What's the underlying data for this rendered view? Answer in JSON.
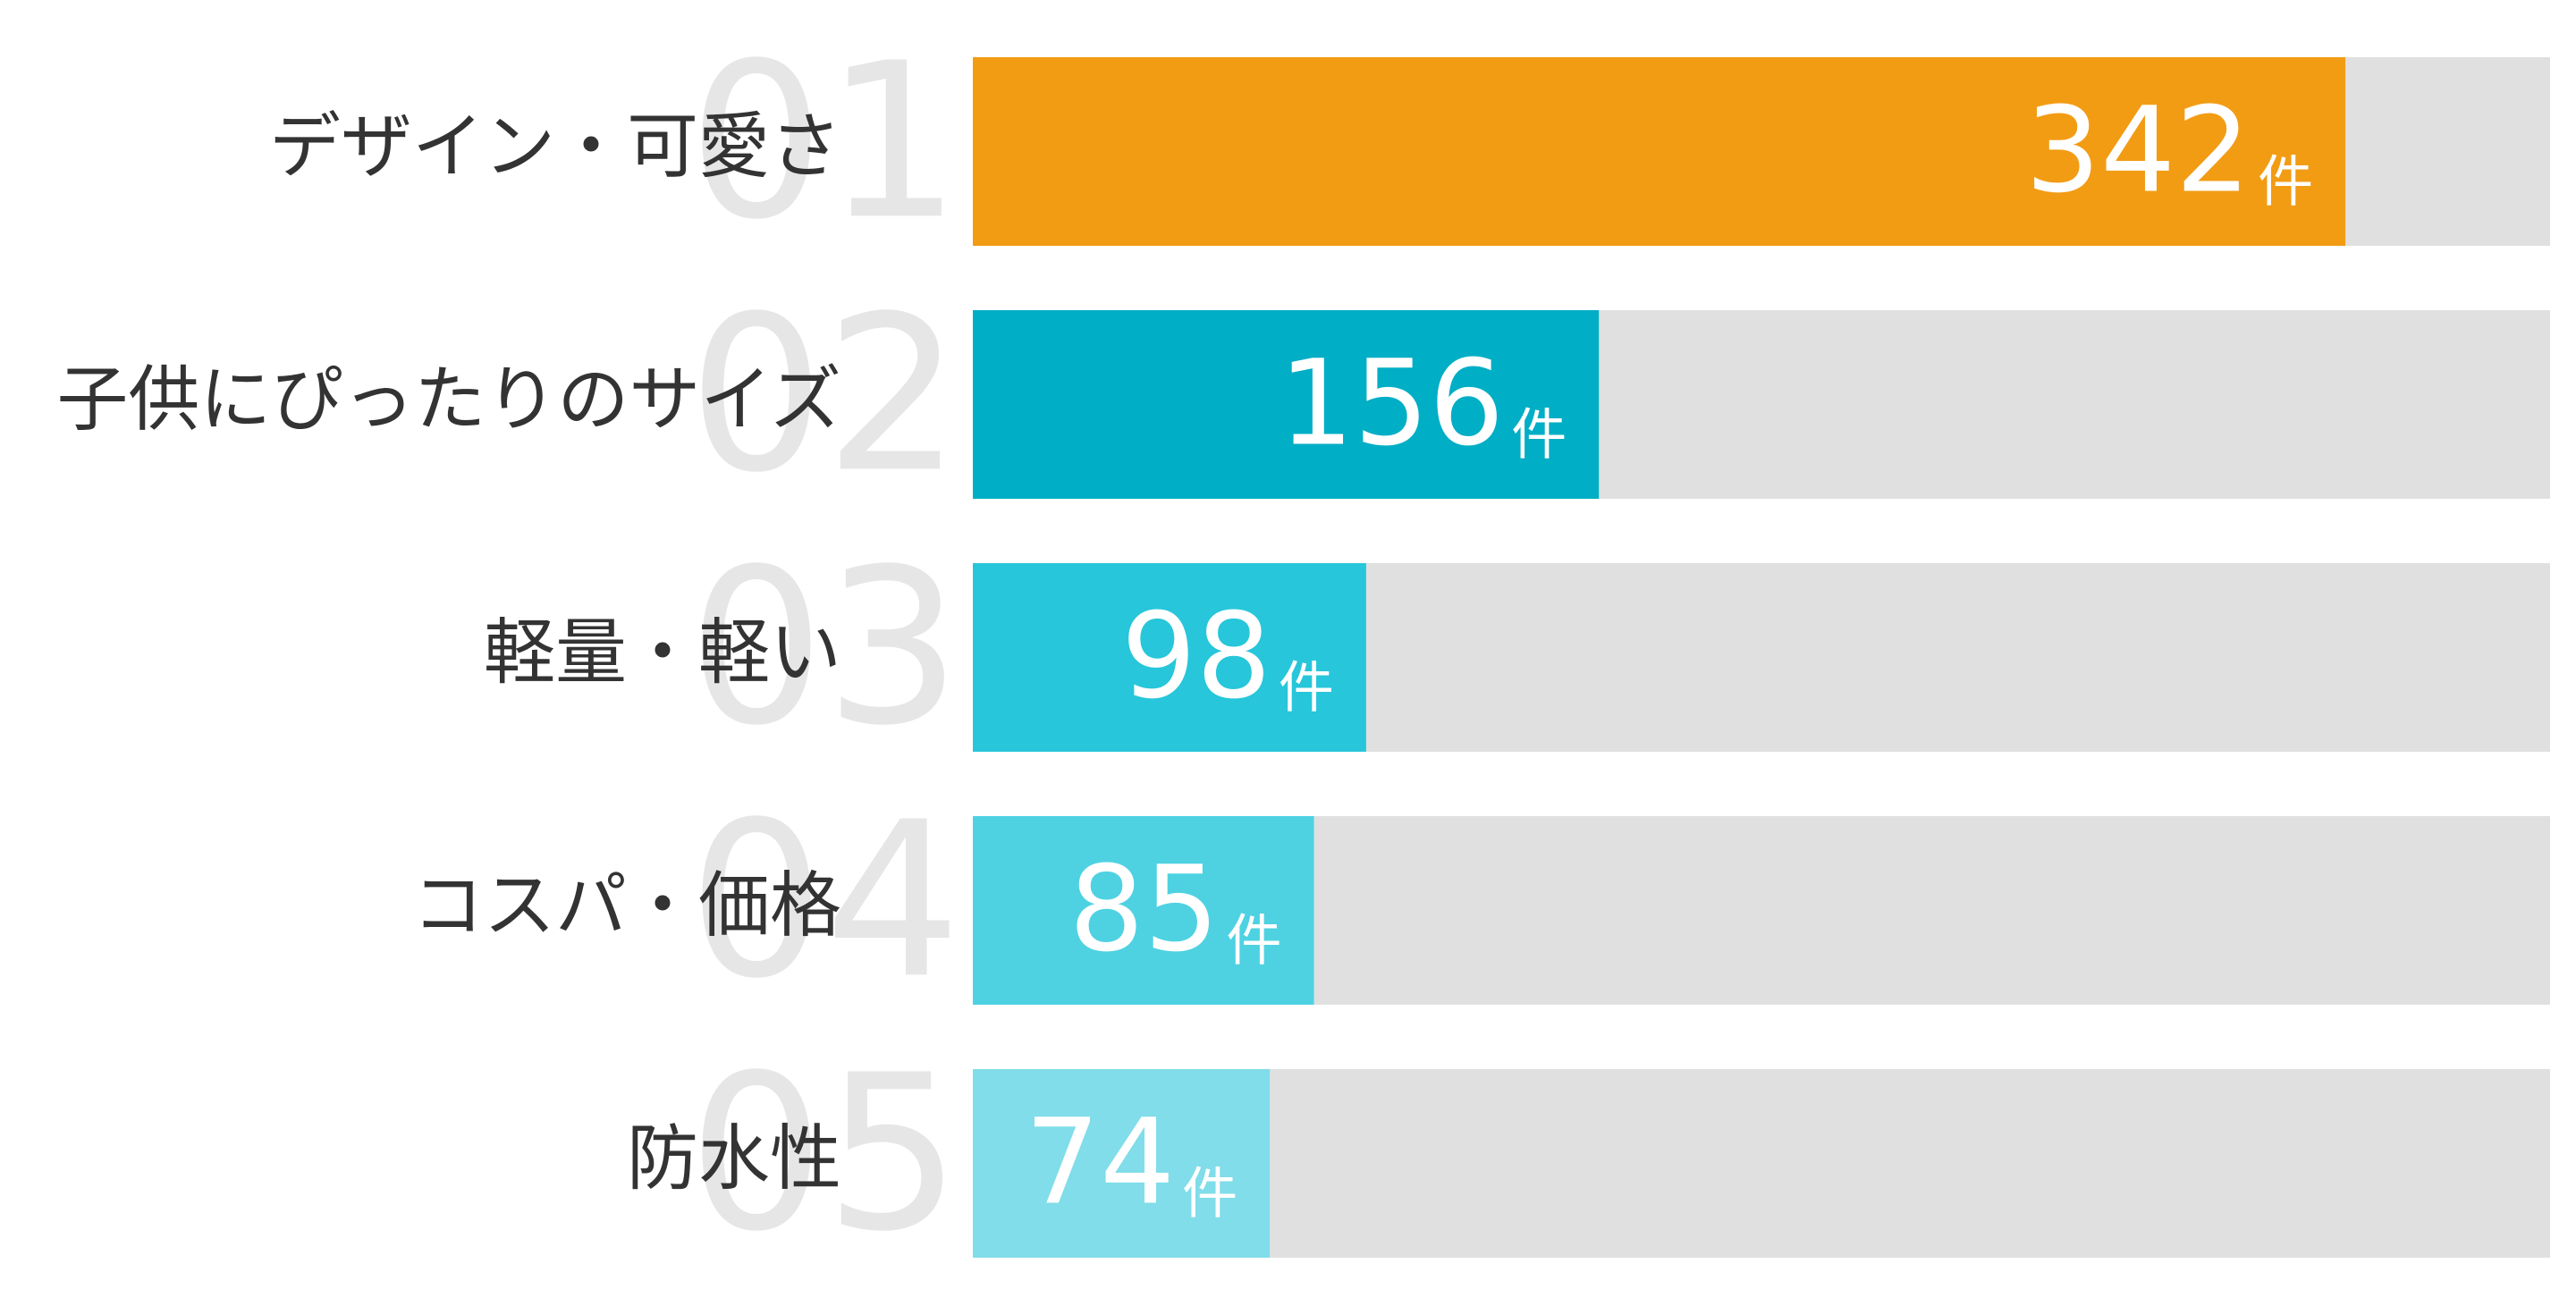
{
  "chart_data": {
    "type": "ranked-bar",
    "ranks": [
      "01",
      "02",
      "03",
      "04",
      "05"
    ],
    "categories": [
      "デザイン・可愛さ",
      "子供にぴったりのサイズ",
      "軽量・軽い",
      "コスパ・価格",
      "防水性"
    ],
    "values": [
      342,
      156,
      98,
      85,
      74
    ],
    "unit": "件",
    "colors": [
      "#f29c14",
      "#00aec5",
      "#27c6da",
      "#4ed2e2",
      "#80dde9"
    ],
    "track_color": "#e0e0e0",
    "xlim": [
      0,
      393
    ]
  }
}
